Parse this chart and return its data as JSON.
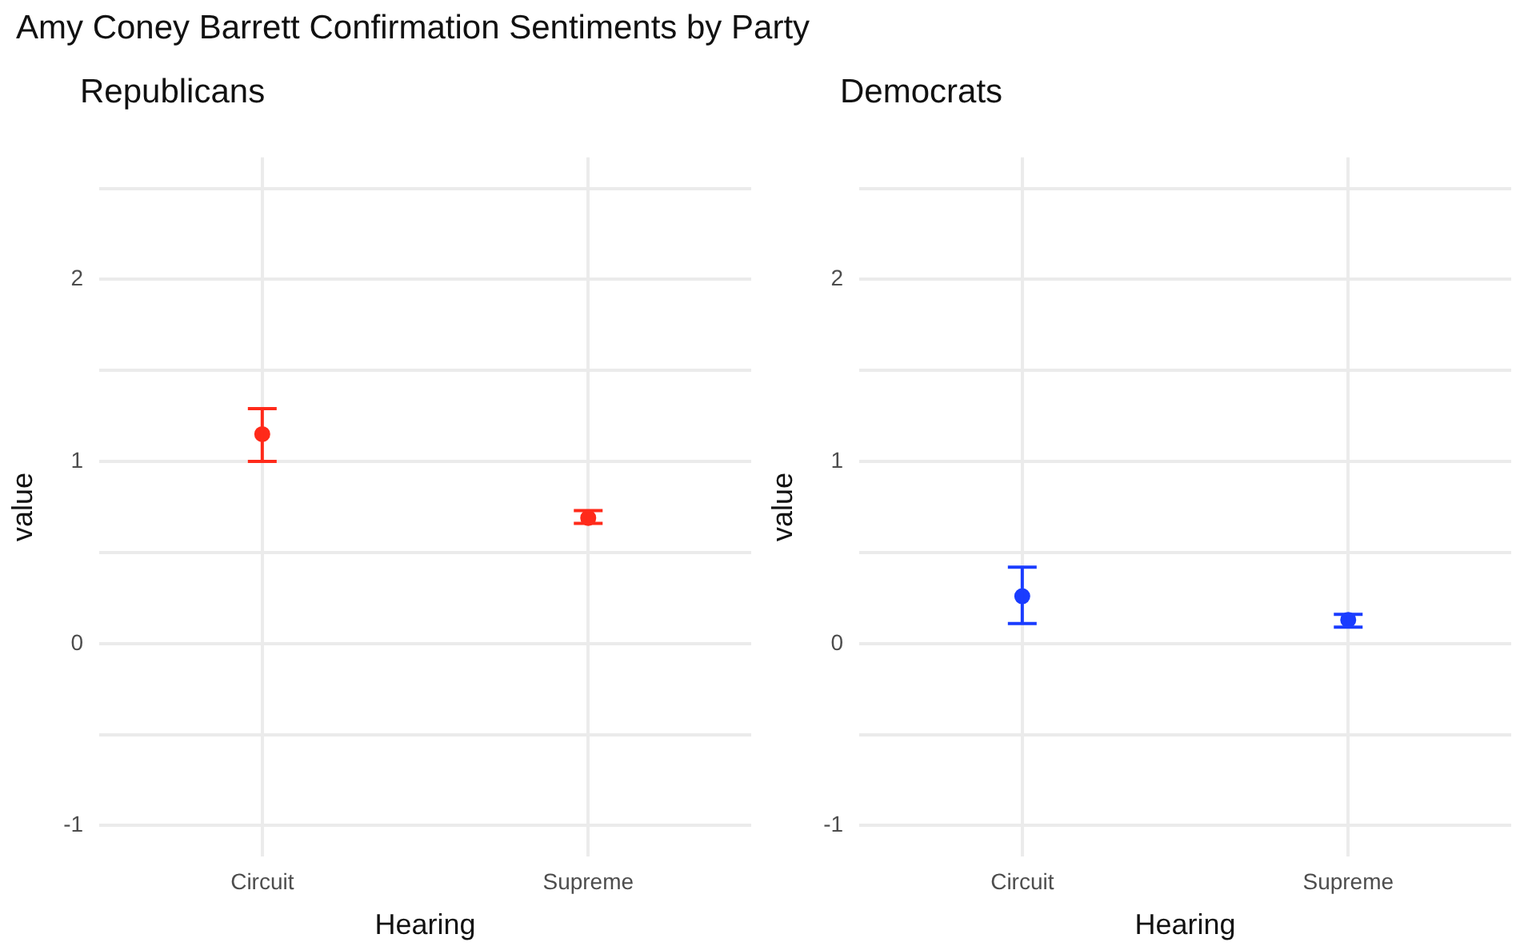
{
  "chart_data": [
    {
      "type": "scatter",
      "title": "Amy Coney Barrett Confirmation Sentiments by Party",
      "subtitle": "Republicans",
      "xlabel": "Hearing",
      "ylabel": "value",
      "categories": [
        "Circuit",
        "Supreme"
      ],
      "values": [
        1.15,
        0.69
      ],
      "errors": [
        [
          1.0,
          1.29
        ],
        [
          0.66,
          0.73
        ]
      ],
      "color": "#ff2a1a",
      "marker": "circle",
      "ylim": [
        -1.17,
        2.67
      ],
      "yticks": [
        -1,
        {
          "value": -0.5,
          "label": null
        },
        0,
        {
          "value": 0.5,
          "label": null
        },
        1,
        {
          "value": 1.5,
          "label": null
        },
        2,
        {
          "value": 2.5,
          "label": null
        }
      ],
      "grid": true,
      "legend": false
    },
    {
      "type": "scatter",
      "subtitle": "Democrats",
      "xlabel": "Hearing",
      "ylabel": "value",
      "categories": [
        "Circuit",
        "Supreme"
      ],
      "values": [
        0.26,
        0.13
      ],
      "errors": [
        [
          0.11,
          0.42
        ],
        [
          0.09,
          0.16
        ]
      ],
      "color": "#1a3cff",
      "marker": "circle",
      "ylim": [
        -1.17,
        2.67
      ],
      "yticks": [
        -1,
        {
          "value": -0.5,
          "label": null
        },
        0,
        {
          "value": 0.5,
          "label": null
        },
        1,
        {
          "value": 1.5,
          "label": null
        },
        2,
        {
          "value": 2.5,
          "label": null
        }
      ],
      "grid": true,
      "legend": false
    }
  ]
}
